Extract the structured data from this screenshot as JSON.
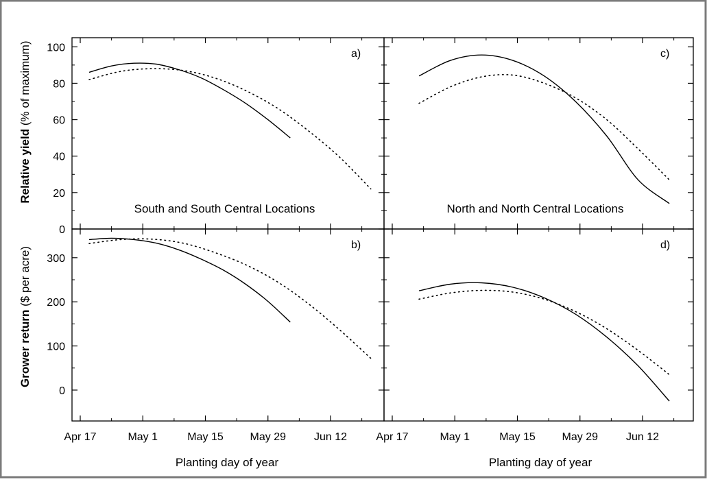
{
  "figure": {
    "ylabel_top_bold": "Relative yield",
    "ylabel_top_rest": "(% of maximum)",
    "ylabel_bottom_bold": "Grower return",
    "ylabel_bottom_rest": "($ per acre)",
    "xlabel_left": "Planting day of year",
    "xlabel_right": "Planting day of year"
  },
  "chart_data": [
    {
      "panel": "a)",
      "type": "line",
      "annotation": "South and South Central Locations",
      "x_ticks": [
        "Apr 17",
        "May 1",
        "May 15",
        "May 29",
        "Jun 12"
      ],
      "ylim": [
        0,
        105
      ],
      "y_ticks": [
        0,
        20,
        40,
        60,
        80,
        100
      ],
      "series": [
        {
          "style": "solid",
          "x": [
            "Apr 19",
            "Apr 24",
            "Apr 29",
            "May 4",
            "May 9",
            "May 14",
            "May 19",
            "May 24",
            "May 29",
            "Jun 3"
          ],
          "values": [
            86,
            89.5,
            91,
            90.5,
            87.5,
            83,
            76.5,
            69,
            60,
            50
          ]
        },
        {
          "style": "dotted",
          "x": [
            "Apr 19",
            "Apr 26",
            "May 3",
            "May 10",
            "May 17",
            "May 24",
            "May 31",
            "Jun 7",
            "Jun 14",
            "Jun 21"
          ],
          "values": [
            82,
            86.5,
            88,
            87,
            83,
            76,
            66.5,
            54,
            39.5,
            22
          ]
        }
      ]
    },
    {
      "panel": "c)",
      "type": "line",
      "annotation": "North and North Central Locations",
      "x_ticks": [
        "Apr 17",
        "May 1",
        "May 15",
        "May 29",
        "Jun 12"
      ],
      "ylim": [
        0,
        105
      ],
      "y_ticks": [
        0,
        20,
        40,
        60,
        80,
        100
      ],
      "series": [
        {
          "style": "solid",
          "x": [
            "Apr 23",
            "Apr 30",
            "May 7",
            "May 14",
            "May 21",
            "May 28",
            "Jun 4",
            "Jun 11",
            "Jun 18"
          ],
          "values": [
            84,
            92.5,
            95.5,
            92.5,
            84,
            70,
            51,
            27,
            14
          ]
        },
        {
          "style": "dotted",
          "x": [
            "Apr 23",
            "Apr 30",
            "May 7",
            "May 14",
            "May 21",
            "May 28",
            "Jun 4",
            "Jun 11",
            "Jun 18"
          ],
          "values": [
            69,
            78,
            83.5,
            84.5,
            80,
            72,
            60,
            44,
            27
          ]
        }
      ]
    },
    {
      "panel": "b)",
      "type": "line",
      "x_ticks": [
        "Apr 17",
        "May 1",
        "May 15",
        "May 29",
        "Jun 12"
      ],
      "ylim": [
        -70,
        365
      ],
      "y_ticks": [
        0,
        100,
        200,
        300
      ],
      "series": [
        {
          "style": "solid",
          "x": [
            "Apr 19",
            "Apr 24",
            "Apr 29",
            "May 4",
            "May 9",
            "May 14",
            "May 19",
            "May 24",
            "May 29",
            "Jun 3"
          ],
          "values": [
            341,
            344,
            341,
            333,
            318,
            297,
            272,
            240,
            201,
            154
          ]
        },
        {
          "style": "dotted",
          "x": [
            "Apr 19",
            "Apr 26",
            "May 3",
            "May 10",
            "May 17",
            "May 24",
            "May 31",
            "Jun 7",
            "Jun 14",
            "Jun 21"
          ],
          "values": [
            332,
            341,
            342,
            333,
            312,
            284,
            246,
            196,
            137,
            72
          ]
        }
      ]
    },
    {
      "panel": "d)",
      "type": "line",
      "x_ticks": [
        "Apr 17",
        "May 1",
        "May 15",
        "May 29",
        "Jun 12"
      ],
      "ylim": [
        -70,
        365
      ],
      "y_ticks": [
        0,
        100,
        200,
        300
      ],
      "series": [
        {
          "style": "solid",
          "x": [
            "Apr 23",
            "Apr 30",
            "May 7",
            "May 14",
            "May 21",
            "May 28",
            "Jun 4",
            "Jun 11",
            "Jun 18"
          ],
          "values": [
            225,
            240,
            243,
            233,
            209,
            172,
            120,
            55,
            -25
          ]
        },
        {
          "style": "dotted",
          "x": [
            "Apr 23",
            "Apr 30",
            "May 7",
            "May 14",
            "May 21",
            "May 28",
            "Jun 4",
            "Jun 11",
            "Jun 18"
          ],
          "values": [
            206,
            220,
            226,
            222,
            206,
            178,
            139,
            90,
            35
          ]
        }
      ]
    }
  ]
}
